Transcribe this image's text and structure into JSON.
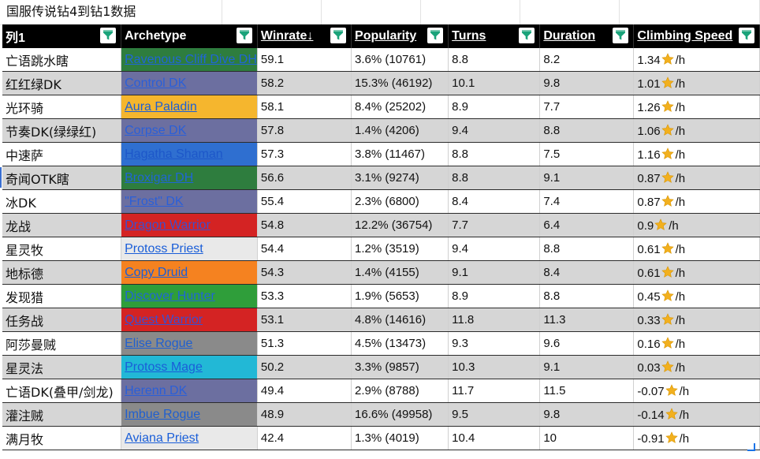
{
  "sheet": {
    "title": "国服传说钻4到钻1数据"
  },
  "headers": [
    {
      "label": "列1",
      "underline": false
    },
    {
      "label": "Archetype",
      "underline": false
    },
    {
      "label": "Winrate↓",
      "underline": true
    },
    {
      "label": "Popularity",
      "underline": true
    },
    {
      "label": "Turns",
      "underline": true
    },
    {
      "label": "Duration",
      "underline": true
    },
    {
      "label": "Climbing Speed",
      "underline": true
    }
  ],
  "climb_unit": "/h",
  "rows": [
    {
      "name": "亡语跳水瞎",
      "archetype": "Ravenous Cliff Dive DH",
      "arch_bg": "#2e7d3e",
      "arch_fg": "#1f66d6",
      "winrate": "59.1",
      "popularity": "3.6% (10761)",
      "turns": "8.8",
      "duration": "8.2",
      "climb": "1.34"
    },
    {
      "name": "红红绿DK",
      "archetype": "Control DK",
      "arch_bg": "#6c6fa0",
      "arch_fg": "#2a5fd8",
      "winrate": "58.2",
      "popularity": "15.3% (46192)",
      "turns": "10.1",
      "duration": "9.8",
      "climb": "1.01"
    },
    {
      "name": "光环骑",
      "archetype": "Aura Paladin",
      "arch_bg": "#f5b62e",
      "arch_fg": "#1a5ed8",
      "winrate": "58.1",
      "popularity": "8.4% (25202)",
      "turns": "8.9",
      "duration": "7.7",
      "climb": "1.26"
    },
    {
      "name": "节奏DK(绿绿红)",
      "archetype": "Corpse DK",
      "arch_bg": "#6c6fa0",
      "arch_fg": "#2a5fd8",
      "winrate": "57.8",
      "popularity": "1.4% (4206)",
      "turns": "9.4",
      "duration": "8.8",
      "climb": "1.06"
    },
    {
      "name": "中速萨",
      "archetype": "Hagatha Shaman",
      "arch_bg": "#2f6fd0",
      "arch_fg": "#1d57c9",
      "winrate": "57.3",
      "popularity": "3.8% (11467)",
      "turns": "8.8",
      "duration": "7.5",
      "climb": "1.16"
    },
    {
      "name": "奇闻OTK瞎",
      "archetype": "Broxigar DH",
      "arch_bg": "#2e7d3e",
      "arch_fg": "#1f66d6",
      "winrate": "56.6",
      "popularity": "3.1% (9274)",
      "turns": "8.8",
      "duration": "9.1",
      "climb": "0.87"
    },
    {
      "name": "冰DK",
      "archetype": "\"Frost\" DK",
      "arch_bg": "#6c6fa0",
      "arch_fg": "#2a5fd8",
      "winrate": "55.4",
      "popularity": "2.3% (6800)",
      "turns": "8.4",
      "duration": "7.4",
      "climb": "0.87"
    },
    {
      "name": "龙战",
      "archetype": "Dragon Warrior",
      "arch_bg": "#d42323",
      "arch_fg": "#3a4fd0",
      "winrate": "54.8",
      "popularity": "12.2% (36754)",
      "turns": "7.7",
      "duration": "6.4",
      "climb": "0.9"
    },
    {
      "name": "星灵牧",
      "archetype": "Protoss Priest",
      "arch_bg": "#e9e9e9",
      "arch_fg": "#1a5ed8",
      "winrate": "54.4",
      "popularity": "1.2% (3519)",
      "turns": "9.4",
      "duration": "8.8",
      "climb": "0.61"
    },
    {
      "name": "地标德",
      "archetype": "Copy Druid",
      "arch_bg": "#f58220",
      "arch_fg": "#1a5ed8",
      "winrate": "54.3",
      "popularity": "1.4% (4155)",
      "turns": "9.1",
      "duration": "8.4",
      "climb": "0.61"
    },
    {
      "name": "发现猎",
      "archetype": "Discover Hunter",
      "arch_bg": "#2f9e3a",
      "arch_fg": "#1f66d6",
      "winrate": "53.3",
      "popularity": "1.9% (5653)",
      "turns": "8.9",
      "duration": "8.8",
      "climb": "0.45"
    },
    {
      "name": "任务战",
      "archetype": "Quest Warrior",
      "arch_bg": "#d42323",
      "arch_fg": "#3a4fd0",
      "winrate": "53.1",
      "popularity": "4.8% (14616)",
      "turns": "11.8",
      "duration": "11.3",
      "climb": "0.33"
    },
    {
      "name": "阿莎曼贼",
      "archetype": "Elise Rogue",
      "arch_bg": "#8a8a8a",
      "arch_fg": "#1f5fd0",
      "winrate": "51.3",
      "popularity": "4.5% (13473)",
      "turns": "9.3",
      "duration": "9.6",
      "climb": "0.16"
    },
    {
      "name": "星灵法",
      "archetype": "Protoss Mage",
      "arch_bg": "#22b8d6",
      "arch_fg": "#1a5ed8",
      "winrate": "50.2",
      "popularity": "3.3% (9857)",
      "turns": "10.3",
      "duration": "9.1",
      "climb": "0.03"
    },
    {
      "name": "亡语DK(叠甲/剑龙)",
      "archetype": "Herenn DK",
      "arch_bg": "#6c6fa0",
      "arch_fg": "#2a5fd8",
      "winrate": "49.4",
      "popularity": "2.9% (8788)",
      "turns": "11.7",
      "duration": "11.5",
      "climb": "-0.07"
    },
    {
      "name": "灌注贼",
      "archetype": "Imbue Rogue",
      "arch_bg": "#8a8a8a",
      "arch_fg": "#1f5fd0",
      "winrate": "48.9",
      "popularity": "16.6% (49958)",
      "turns": "9.5",
      "duration": "9.8",
      "climb": "-0.14"
    },
    {
      "name": "满月牧",
      "archetype": "Aviana Priest",
      "arch_bg": "#e9e9e9",
      "arch_fg": "#1a5ed8",
      "winrate": "42.4",
      "popularity": "1.3% (4019)",
      "turns": "10.4",
      "duration": "10",
      "climb": "-0.91"
    }
  ],
  "icons": {
    "filter": "filter-icon",
    "star": "star-icon"
  },
  "colors": {
    "header_bg": "#000000",
    "filter_green": "#1aa37a",
    "row_stripe": "#d6d6d6",
    "star": "#f2b01e"
  }
}
